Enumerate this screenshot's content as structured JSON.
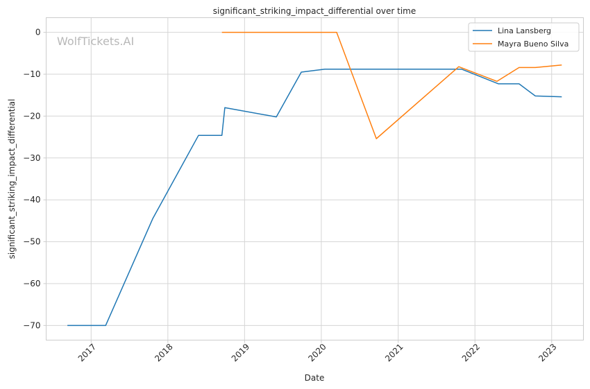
{
  "chart_data": {
    "type": "line",
    "title": "significant_striking_impact_differential over time",
    "xlabel": "Date",
    "ylabel": "significant_striking_impact_differential",
    "watermark": "WolfTickets.AI",
    "xlim": [
      "2016-06-01",
      "2023-06-01"
    ],
    "ylim": [
      -73.5,
      3.5
    ],
    "x_ticks": [
      {
        "date": "2017-01-01",
        "label": "2017"
      },
      {
        "date": "2018-01-01",
        "label": "2018"
      },
      {
        "date": "2019-01-01",
        "label": "2019"
      },
      {
        "date": "2020-01-01",
        "label": "2020"
      },
      {
        "date": "2021-01-01",
        "label": "2021"
      },
      {
        "date": "2022-01-01",
        "label": "2022"
      },
      {
        "date": "2023-01-01",
        "label": "2023"
      }
    ],
    "y_ticks": [
      0,
      -10,
      -20,
      -30,
      -40,
      -50,
      -60,
      -70
    ],
    "y_tick_labels": [
      "0",
      "−10",
      "−20",
      "−30",
      "−40",
      "−50",
      "−60",
      "−70"
    ],
    "grid": true,
    "legend_position": "top-right",
    "series": [
      {
        "name": "Lina Lansberg",
        "color": "#1f77b4",
        "points": [
          {
            "x": "2016-09-10",
            "y": -70.0
          },
          {
            "x": "2017-03-11",
            "y": -70.0
          },
          {
            "x": "2017-10-21",
            "y": -44.5
          },
          {
            "x": "2018-05-27",
            "y": -24.6
          },
          {
            "x": "2018-09-15",
            "y": -24.6
          },
          {
            "x": "2018-09-29",
            "y": -18.0
          },
          {
            "x": "2019-06-01",
            "y": -20.2
          },
          {
            "x": "2019-09-28",
            "y": -9.5
          },
          {
            "x": "2020-01-18",
            "y": -8.8
          },
          {
            "x": "2021-10-30",
            "y": -8.8
          },
          {
            "x": "2022-04-23",
            "y": -12.3
          },
          {
            "x": "2022-07-30",
            "y": -12.3
          },
          {
            "x": "2022-10-15",
            "y": -15.2
          },
          {
            "x": "2023-02-18",
            "y": -15.4
          }
        ]
      },
      {
        "name": "Mayra Bueno Silva",
        "color": "#ff7f0e",
        "points": [
          {
            "x": "2018-09-15",
            "y": 0.0
          },
          {
            "x": "2020-03-14",
            "y": 0.0
          },
          {
            "x": "2020-09-19",
            "y": -25.4
          },
          {
            "x": "2021-10-16",
            "y": -8.2
          },
          {
            "x": "2022-04-16",
            "y": -11.7
          },
          {
            "x": "2022-07-30",
            "y": -8.4
          },
          {
            "x": "2022-10-15",
            "y": -8.4
          },
          {
            "x": "2023-02-18",
            "y": -7.8
          }
        ]
      }
    ]
  }
}
